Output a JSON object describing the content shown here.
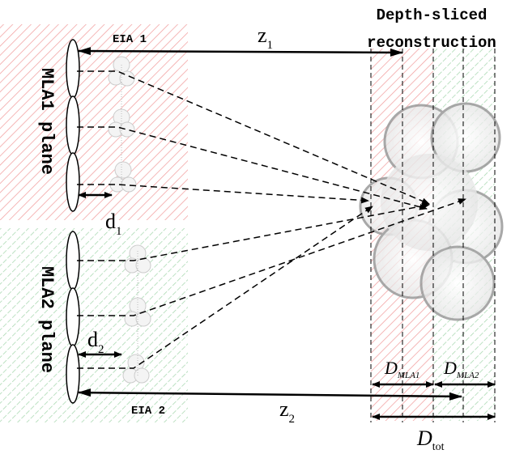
{
  "title": [
    "Depth-sliced",
    "reconstruction"
  ],
  "labels": {
    "eia1": "EIA 1",
    "eia2": "EIA 2",
    "mla1": "MLA1 plane",
    "mla2": "MLA2 plane",
    "z1": {
      "main": "z",
      "sub": "1"
    },
    "z2": {
      "main": "z",
      "sub": "2"
    },
    "d1": {
      "main": "d",
      "sub": "1"
    },
    "d2": {
      "main": "d",
      "sub": "2"
    },
    "dmla1": {
      "main": "D",
      "sub": "MLA1"
    },
    "dmla2": {
      "main": "D",
      "sub": "MLA2"
    },
    "dtot": {
      "main": "D",
      "sub": "tot"
    }
  }
}
